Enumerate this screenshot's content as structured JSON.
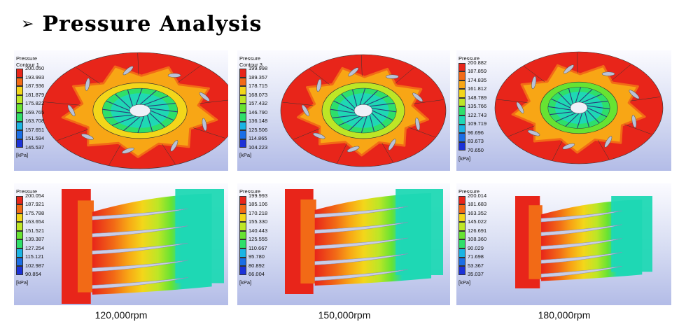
{
  "title": "Pressure  Analysis",
  "colors": [
    "#e8251a",
    "#f26a16",
    "#f8a615",
    "#f3d61a",
    "#bde626",
    "#67e332",
    "#2edf6a",
    "#1fd8b4",
    "#1ab4e4",
    "#1a6ee6",
    "#1c32d8"
  ],
  "captions": [
    "120,000rpm",
    "150,000rpm",
    "180,000rpm"
  ],
  "contours": [
    {
      "label": [
        "Pressure",
        "Contour 1"
      ],
      "values": [
        "200.050",
        "193.993",
        "187.936",
        "181.879",
        "175.822",
        "169.765",
        "163.708",
        "157.651",
        "151.594",
        "145.537"
      ],
      "unit": "[kPa]"
    },
    {
      "label": [
        "Pressure",
        "Contour 3"
      ],
      "values": [
        "199.998",
        "189.357",
        "178.715",
        "168.073",
        "157.432",
        "146.790",
        "136.148",
        "125.506",
        "114.865",
        "104.223"
      ],
      "unit": "[kPa]"
    },
    {
      "label": [
        "Pressure"
      ],
      "values": [
        "200.882",
        "187.859",
        "174.835",
        "161.812",
        "148.789",
        "135.766",
        "122.743",
        "109.719",
        "96.696",
        "83.673",
        "70.650"
      ],
      "unit": "[kPa]"
    },
    {
      "label": [
        "Pressure"
      ],
      "values": [
        "200.054",
        "187.921",
        "175.788",
        "163.654",
        "151.521",
        "139.387",
        "127.254",
        "115.121",
        "102.987",
        "90.854"
      ],
      "unit": "[kPa]"
    },
    {
      "label": [
        "Pressure"
      ],
      "values": [
        "199.993",
        "185.106",
        "170.218",
        "155.330",
        "140.443",
        "125.555",
        "110.667",
        "95.780",
        "80.892",
        "66.004"
      ],
      "unit": "[kPa]"
    },
    {
      "label": [
        "Pressure"
      ],
      "values": [
        "200.014",
        "181.683",
        "163.352",
        "145.022",
        "126.691",
        "108.360",
        "90.029",
        "71.698",
        "53.367",
        "35.037"
      ],
      "unit": "[kPa]"
    }
  ]
}
